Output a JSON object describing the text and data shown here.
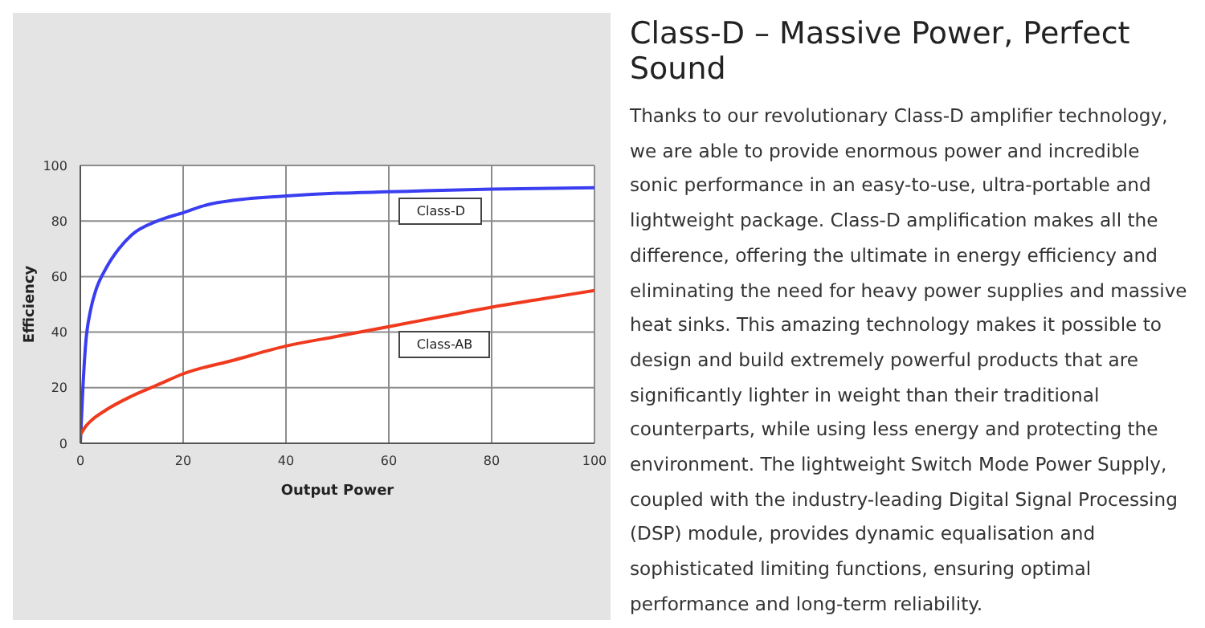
{
  "chart_data": {
    "type": "line",
    "title": "Class-D – Massive Power, Perfect Sound",
    "xlabel": "Output Power",
    "ylabel": "Efficiency",
    "xlim": [
      0,
      100
    ],
    "xticks": [
      0,
      20,
      40,
      60,
      80,
      100
    ],
    "ylim": [
      0,
      100
    ],
    "yticks": [
      0,
      20,
      40,
      60,
      80,
      100
    ],
    "grid": true,
    "legend": false,
    "marker": "none",
    "line_style": "solid",
    "series": [
      {
        "name": "Class-D",
        "color": "#3a3ef0",
        "x": [
          0,
          0.5,
          1,
          2,
          3,
          5,
          7.5,
          10,
          15,
          20,
          25,
          30,
          40,
          50,
          60,
          80,
          100
        ],
        "values": [
          0,
          20,
          35,
          48,
          55,
          63,
          70,
          75,
          80,
          83,
          86,
          87.5,
          89,
          90,
          90.5,
          91.5,
          92
        ]
      },
      {
        "name": "Class-AB",
        "color": "#f03a1e",
        "x": [
          0,
          1,
          2,
          5,
          10,
          15,
          20,
          30,
          40,
          50,
          60,
          70,
          80,
          90,
          100
        ],
        "values": [
          3,
          6,
          8,
          12,
          17,
          21,
          25,
          30,
          35,
          38.5,
          42,
          45.5,
          49,
          52,
          55
        ]
      }
    ],
    "annotations": [
      "Thanks to our revolutionary Class-D amplifier technology, we are able to provide enormous power and incredible sonic performance in an easy-to-use, ultra-portable and lightweight package. Class-D amplification makes all the difference, offering the ultimate in energy efficiency and eliminating the need for heavy power supplies and massive heat sinks. This amazing technology makes it possible to design and build extremely powerful products that are significantly lighter in weight than their traditional counterparts, while using less energy and protecting the environment. The lightweight Switch Mode Power Supply, coupled with the industry-leading Digital Signal Processing (DSP) module, provides dynamic equalisation and sophisticated limiting functions, ensuring optimal performance and long-term reliability."
    ]
  }
}
